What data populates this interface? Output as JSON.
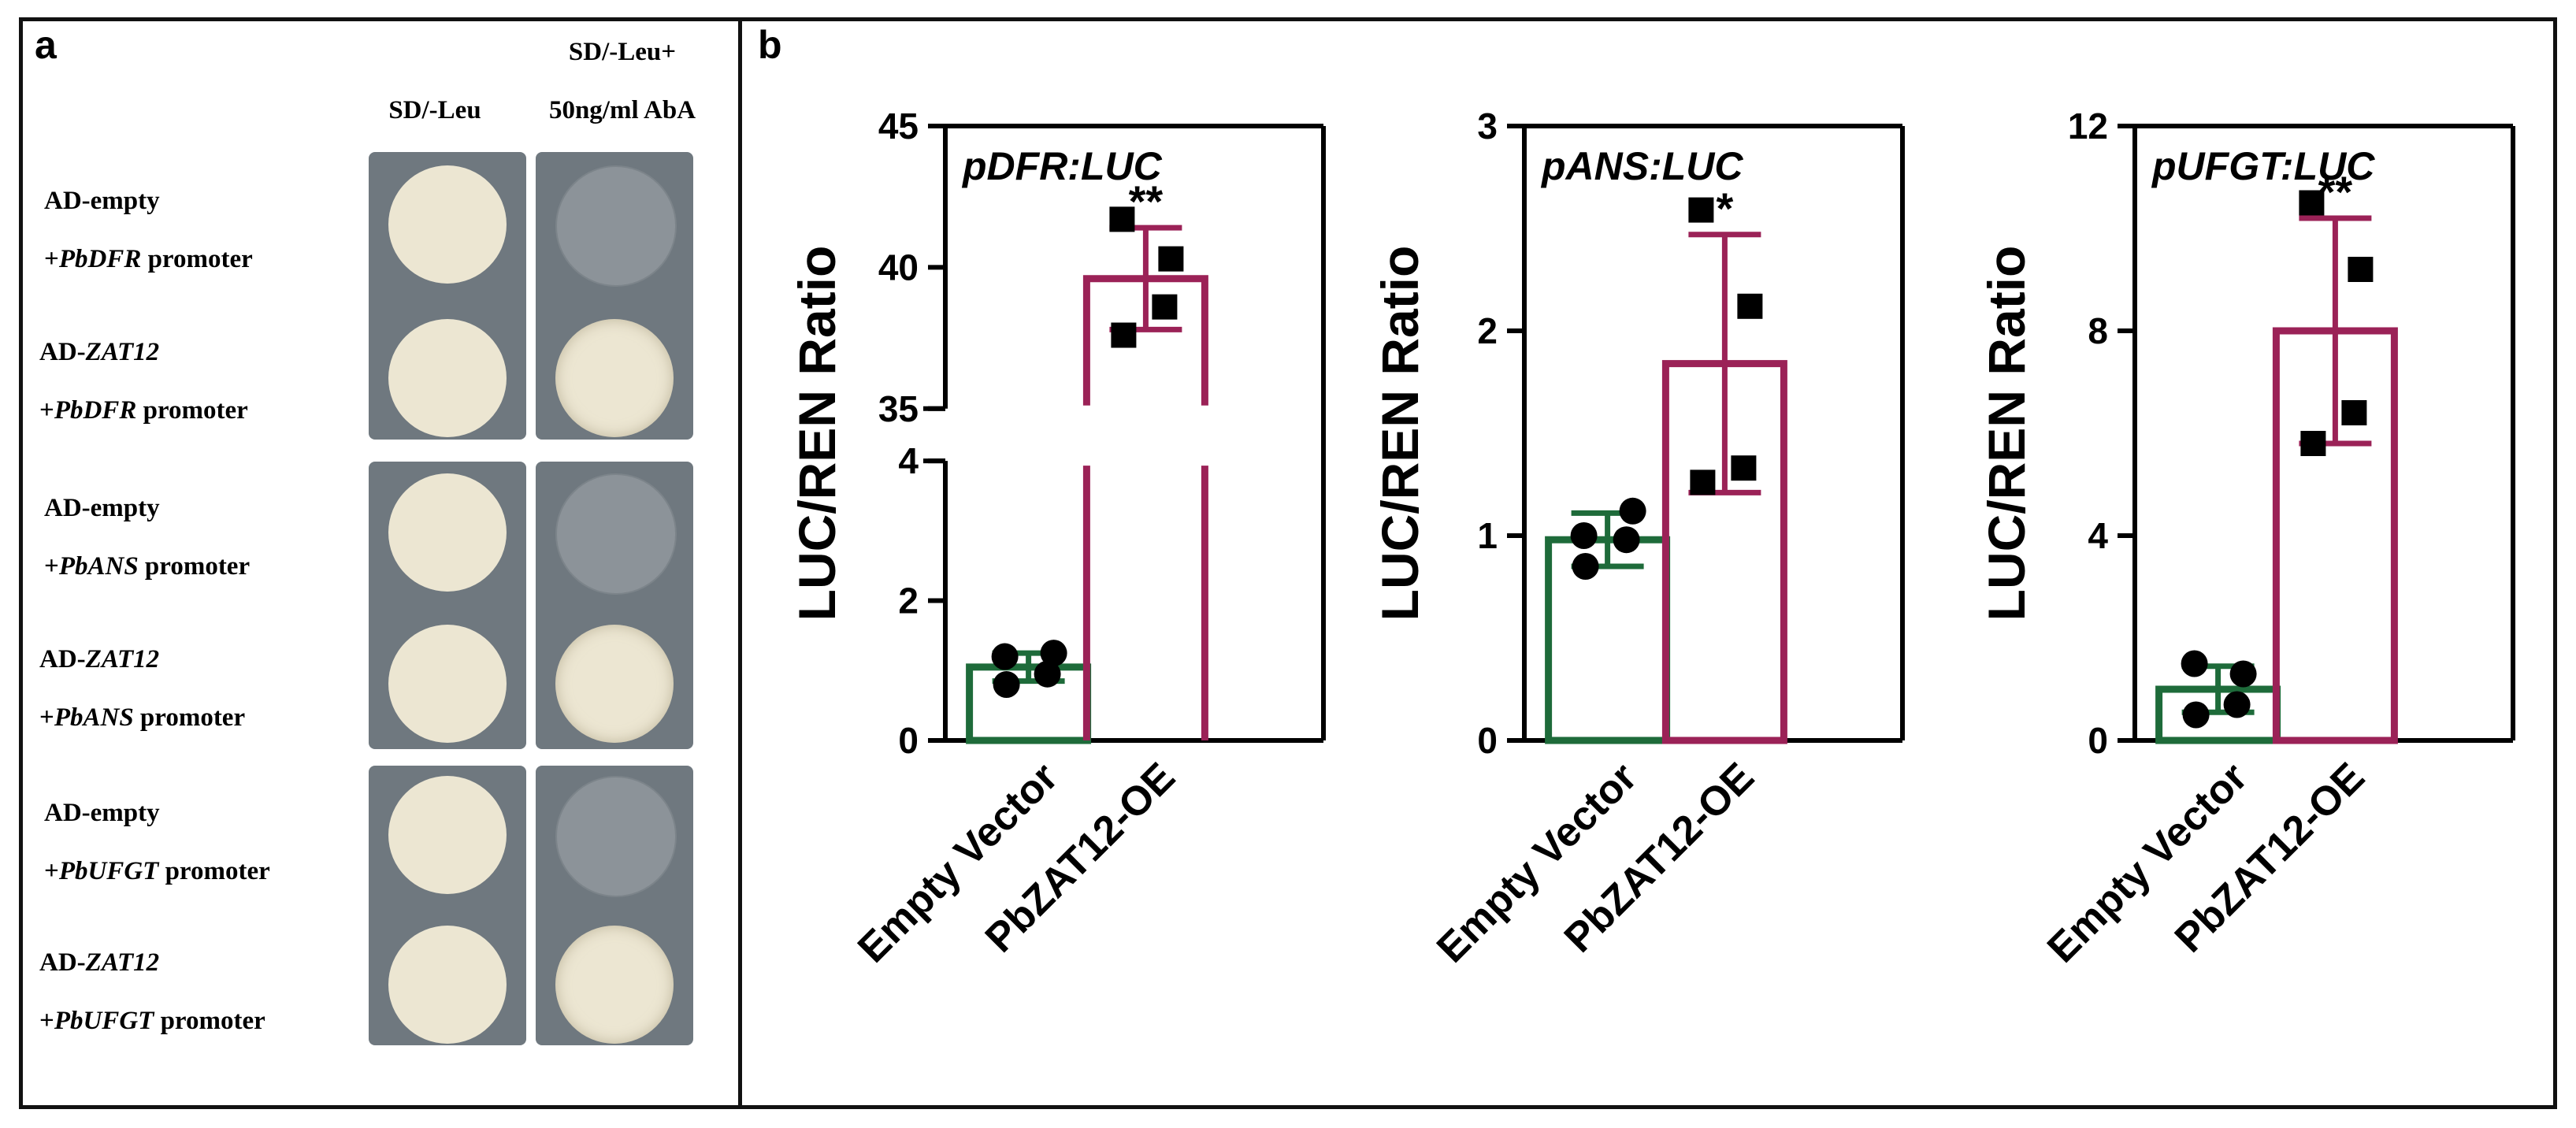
{
  "figure": {
    "panel_a_label": "a",
    "panel_b_label": "b"
  },
  "panel_a": {
    "col_headers": [
      "SD/-Leu",
      "SD/-Leu+",
      "50ng/ml AbA"
    ],
    "rows": [
      {
        "line1": "AD-empty",
        "line2_prefix": "+",
        "line2_gene": "PbDFR",
        "line2_suffix": " promoter",
        "growth_sd": "full",
        "growth_aba": "none"
      },
      {
        "line1_prefix": "AD-",
        "line1_gene": "ZAT12",
        "line2_prefix": "+",
        "line2_gene": "PbDFR",
        "line2_suffix": " promoter",
        "growth_sd": "full",
        "growth_aba": "full"
      },
      {
        "line1": "AD-empty",
        "line2_prefix": "+",
        "line2_gene": "PbANS",
        "line2_suffix": " promoter",
        "growth_sd": "full",
        "growth_aba": "none"
      },
      {
        "line1_prefix": "AD-",
        "line1_gene": "ZAT12",
        "line2_prefix": "+",
        "line2_gene": "PbANS",
        "line2_suffix": " promoter",
        "growth_sd": "full",
        "growth_aba": "full"
      },
      {
        "line1": "AD-empty",
        "line2_prefix": "+",
        "line2_gene": "PbUFGT",
        "line2_suffix": " promoter",
        "growth_sd": "full",
        "growth_aba": "none"
      },
      {
        "line1_prefix": "AD-",
        "line1_gene": "ZAT12",
        "line2_prefix": "+",
        "line2_gene": "PbUFGT",
        "line2_suffix": " promoter",
        "growth_sd": "full",
        "growth_aba": "full"
      }
    ],
    "colors": {
      "plate": "#6f787f",
      "colony": "#ece6d2",
      "faint": "#8c9399"
    }
  },
  "chart_data": [
    {
      "type": "bar",
      "title": "pDFR:LUC",
      "ylabel": "LUC/REN Ratio",
      "categories": [
        "Empty Vector",
        "PbZAT12-OE"
      ],
      "values": [
        1.05,
        39.6
      ],
      "errors": [
        0.2,
        1.8
      ],
      "points": [
        [
          1.2,
          1.25,
          0.95,
          0.8
        ],
        [
          41.7,
          40.3,
          38.6,
          37.6
        ]
      ],
      "significance": [
        "",
        "**"
      ],
      "broken_axis": true,
      "lower_ticks": [
        "0",
        "2",
        "4"
      ],
      "upper_ticks": [
        "35",
        "40",
        "45"
      ],
      "colors": [
        "#1e6b3a",
        "#9b2257"
      ]
    },
    {
      "type": "bar",
      "title": "pANS:LUC",
      "ylabel": "LUC/REN Ratio",
      "categories": [
        "Empty Vector",
        "PbZAT12-OE"
      ],
      "values": [
        0.98,
        1.84
      ],
      "errors": [
        0.13,
        0.63
      ],
      "points": [
        [
          1.0,
          1.12,
          0.98,
          0.85
        ],
        [
          2.59,
          2.12,
          1.33,
          1.26
        ]
      ],
      "significance": [
        "",
        "*"
      ],
      "ylim": [
        0,
        3
      ],
      "ticks": [
        "0",
        "1",
        "2",
        "3"
      ],
      "colors": [
        "#1e6b3a",
        "#9b2257"
      ]
    },
    {
      "type": "bar",
      "title": "pUFGT:LUC",
      "ylabel": "LUC/REN Ratio",
      "categories": [
        "Empty Vector",
        "PbZAT12-OE"
      ],
      "values": [
        1.0,
        8.0
      ],
      "errors": [
        0.45,
        2.2
      ],
      "points": [
        [
          1.5,
          1.3,
          0.7,
          0.5
        ],
        [
          10.5,
          9.2,
          6.4,
          5.8
        ]
      ],
      "significance": [
        "",
        "**"
      ],
      "ylim": [
        0,
        12
      ],
      "ticks": [
        "0",
        "4",
        "8",
        "12"
      ],
      "colors": [
        "#1e6b3a",
        "#9b2257"
      ]
    }
  ]
}
